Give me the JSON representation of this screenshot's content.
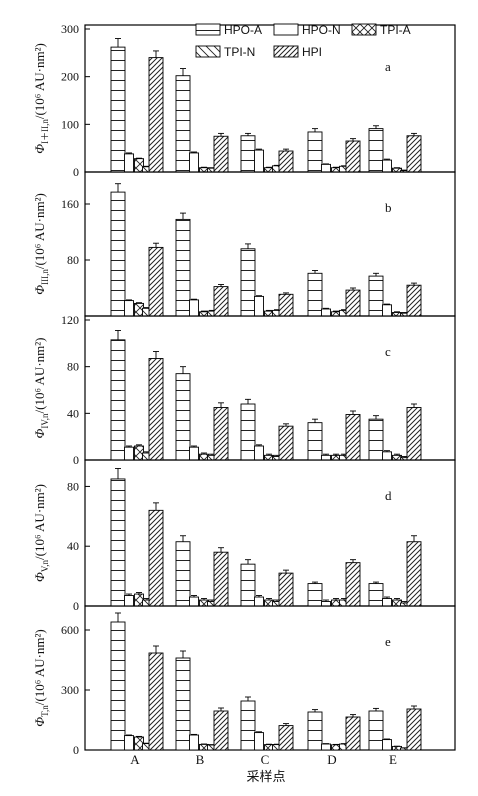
{
  "chart_data": {
    "type": "bar",
    "categories": [
      "A",
      "B",
      "C",
      "D",
      "E"
    ],
    "xlabel": "采样点",
    "legend": {
      "placement": "top-right",
      "entries": [
        "HPO-A",
        "HPO-N",
        "TPI-A",
        "TPI-N",
        "HPI"
      ]
    },
    "panels": [
      {
        "letter": "a",
        "ylabel": "Φ",
        "ylabel_sub": "I＋II,n",
        "ylabel_tail": "/(10⁶ AU·nm²)",
        "ylim": [
          0,
          300
        ],
        "yticks": [
          "0",
          "100",
          "200",
          "300"
        ],
        "series": [
          {
            "name": "HPO-A",
            "values": [
              262,
              202,
              76,
              84,
              91
            ],
            "err": [
              18,
              15,
              5,
              7,
              6
            ]
          },
          {
            "name": "HPO-N",
            "values": [
              38,
              40,
              46,
              16,
              25
            ],
            "err": [
              2,
              2,
              2,
              1,
              2
            ]
          },
          {
            "name": "TPI-A",
            "values": [
              28,
              9,
              9,
              9,
              8
            ],
            "err": [
              1,
              1,
              1,
              1,
              1
            ]
          },
          {
            "name": "TPI-N",
            "values": [
              11,
              8,
              13,
              12,
              3
            ],
            "err": [
              1,
              1,
              1,
              1,
              1
            ]
          },
          {
            "name": "HPI",
            "values": [
              240,
              75,
              44,
              65,
              76
            ],
            "err": [
              14,
              6,
              4,
              5,
              5
            ]
          }
        ]
      },
      {
        "letter": "b",
        "ylabel": "Φ",
        "ylabel_sub": "III,n",
        "ylabel_tail": "/(10⁶ AU·nm²)",
        "ylim": [
          0,
          200
        ],
        "yticks": [
          "",
          "80",
          "160"
        ],
        "series": [
          {
            "name": "HPO-A",
            "values": [
              177,
              138,
              96,
              61,
              57
            ],
            "err": [
              12,
              9,
              7,
              4,
              4
            ]
          },
          {
            "name": "HPO-N",
            "values": [
              22,
              23,
              28,
              10,
              16
            ],
            "err": [
              1,
              1,
              1,
              1,
              1
            ]
          },
          {
            "name": "TPI-A",
            "values": [
              18,
              6,
              7,
              6,
              5
            ],
            "err": [
              1,
              1,
              1,
              1,
              1
            ]
          },
          {
            "name": "TPI-N",
            "values": [
              11,
              7,
              8,
              8,
              4
            ],
            "err": [
              1,
              1,
              1,
              1,
              1
            ]
          },
          {
            "name": "HPI",
            "values": [
              98,
              42,
              31,
              37,
              44
            ],
            "err": [
              6,
              3,
              2,
              3,
              3
            ]
          }
        ]
      },
      {
        "letter": "c",
        "ylabel": "Φ",
        "ylabel_sub": "IV,n",
        "ylabel_tail": "/(10⁶ AU·nm²)",
        "ylim": [
          0,
          120
        ],
        "yticks": [
          "120",
          "80",
          "40",
          "0"
        ],
        "series": [
          {
            "name": "HPO-A",
            "values": [
              103,
              74,
              48,
              32,
              35
            ],
            "err": [
              8,
              6,
              4,
              3,
              3
            ]
          },
          {
            "name": "HPO-N",
            "values": [
              11,
              11,
              12,
              4,
              7
            ],
            "err": [
              1,
              1,
              1,
              1,
              1
            ]
          },
          {
            "name": "TPI-A",
            "values": [
              12,
              5,
              4,
              4,
              4
            ],
            "err": [
              1,
              1,
              1,
              1,
              1
            ]
          },
          {
            "name": "TPI-N",
            "values": [
              6,
              4,
              3,
              4,
              2
            ],
            "err": [
              1,
              1,
              1,
              1,
              1
            ]
          },
          {
            "name": "HPI",
            "values": [
              87,
              45,
              29,
              39,
              45
            ],
            "err": [
              6,
              4,
              2,
              3,
              3
            ]
          }
        ]
      },
      {
        "letter": "d",
        "ylabel": "Φ",
        "ylabel_sub": "V,n",
        "ylabel_tail": "/(10⁶ AU·nm²)",
        "ylim": [
          0,
          95
        ],
        "yticks": [
          "0",
          "40",
          "80"
        ],
        "series": [
          {
            "name": "HPO-A",
            "values": [
              85,
              43,
              28,
              15,
              15
            ],
            "err": [
              7,
              4,
              3,
              1,
              1
            ]
          },
          {
            "name": "HPO-N",
            "values": [
              7,
              6,
              6,
              3,
              5
            ],
            "err": [
              1,
              1,
              1,
              1,
              1
            ]
          },
          {
            "name": "TPI-A",
            "values": [
              8,
              4,
              4,
              4,
              4
            ],
            "err": [
              1,
              1,
              1,
              1,
              1
            ]
          },
          {
            "name": "TPI-N",
            "values": [
              4,
              3,
              3,
              4,
              2
            ],
            "err": [
              1,
              1,
              1,
              1,
              1
            ]
          },
          {
            "name": "HPI",
            "values": [
              64,
              36,
              22,
              29,
              43
            ],
            "err": [
              5,
              3,
              2,
              2,
              4
            ]
          }
        ]
      },
      {
        "letter": "e",
        "ylabel": "Φ",
        "ylabel_sub": "T,n",
        "ylabel_tail": "/(10⁶ AU·nm²)",
        "ylim": [
          0,
          700
        ],
        "yticks": [
          "0",
          "300",
          "600"
        ],
        "series": [
          {
            "name": "HPO-A",
            "values": [
              640,
              460,
              245,
              190,
              195
            ],
            "err": [
              45,
              35,
              20,
              12,
              13
            ]
          },
          {
            "name": "HPO-N",
            "values": [
              72,
              75,
              87,
              30,
              52
            ],
            "err": [
              3,
              3,
              4,
              2,
              3
            ]
          },
          {
            "name": "TPI-A",
            "values": [
              65,
              28,
              27,
              26,
              18
            ],
            "err": [
              3,
              2,
              2,
              2,
              1
            ]
          },
          {
            "name": "TPI-N",
            "values": [
              32,
              25,
              27,
              30,
              10
            ],
            "err": [
              2,
              2,
              2,
              2,
              1
            ]
          },
          {
            "name": "HPI",
            "values": [
              485,
              195,
              122,
              165,
              205
            ],
            "err": [
              35,
              15,
              10,
              12,
              15
            ]
          }
        ]
      }
    ]
  }
}
